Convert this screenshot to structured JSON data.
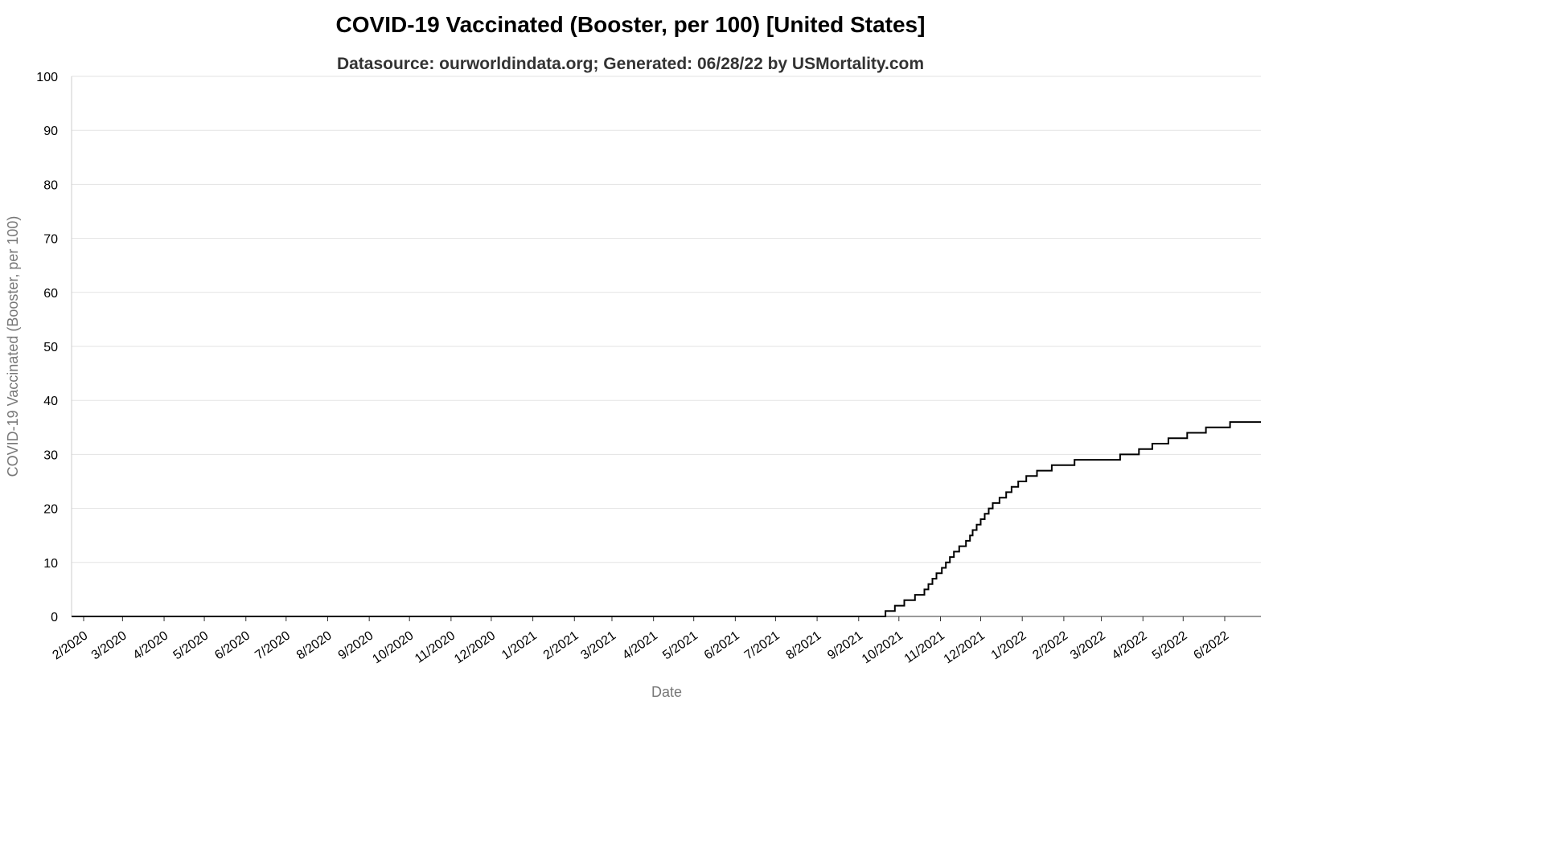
{
  "chart_data": {
    "type": "line",
    "title": "COVID-19 Vaccinated (Booster, per 100) [United States]",
    "subtitle": "Datasource: ourworldindata.org; Generated: 06/28/22 by USMortality.com",
    "xlabel": "Date",
    "ylabel": "COVID-19 Vaccinated (Booster, per 100)",
    "ylim": [
      0,
      100
    ],
    "yticks": [
      0,
      10,
      20,
      30,
      40,
      50,
      60,
      70,
      80,
      90,
      100
    ],
    "xlim": [
      "2020-01-23",
      "2022-06-28"
    ],
    "xticks": [
      {
        "date": "2020-02-01",
        "label": "2/2020"
      },
      {
        "date": "2020-03-01",
        "label": "3/2020"
      },
      {
        "date": "2020-04-01",
        "label": "4/2020"
      },
      {
        "date": "2020-05-01",
        "label": "5/2020"
      },
      {
        "date": "2020-06-01",
        "label": "6/2020"
      },
      {
        "date": "2020-07-01",
        "label": "7/2020"
      },
      {
        "date": "2020-08-01",
        "label": "8/2020"
      },
      {
        "date": "2020-09-01",
        "label": "9/2020"
      },
      {
        "date": "2020-10-01",
        "label": "10/2020"
      },
      {
        "date": "2020-11-01",
        "label": "11/2020"
      },
      {
        "date": "2020-12-01",
        "label": "12/2020"
      },
      {
        "date": "2021-01-01",
        "label": "1/2021"
      },
      {
        "date": "2021-02-01",
        "label": "2/2021"
      },
      {
        "date": "2021-03-01",
        "label": "3/2021"
      },
      {
        "date": "2021-04-01",
        "label": "4/2021"
      },
      {
        "date": "2021-05-01",
        "label": "5/2021"
      },
      {
        "date": "2021-06-01",
        "label": "6/2021"
      },
      {
        "date": "2021-07-01",
        "label": "7/2021"
      },
      {
        "date": "2021-08-01",
        "label": "8/2021"
      },
      {
        "date": "2021-09-01",
        "label": "9/2021"
      },
      {
        "date": "2021-10-01",
        "label": "10/2021"
      },
      {
        "date": "2021-11-01",
        "label": "11/2021"
      },
      {
        "date": "2021-12-01",
        "label": "12/2021"
      },
      {
        "date": "2022-01-01",
        "label": "1/2022"
      },
      {
        "date": "2022-02-01",
        "label": "2/2022"
      },
      {
        "date": "2022-03-01",
        "label": "3/2022"
      },
      {
        "date": "2022-04-01",
        "label": "4/2022"
      },
      {
        "date": "2022-05-01",
        "label": "5/2022"
      },
      {
        "date": "2022-06-01",
        "label": "6/2022"
      }
    ],
    "grid": true,
    "series": [
      {
        "color": "#000000",
        "step": true,
        "points": [
          {
            "x": "2020-01-23",
            "y": 0
          },
          {
            "x": "2021-09-21",
            "y": 0
          },
          {
            "x": "2021-09-21",
            "y": 1
          },
          {
            "x": "2021-09-28",
            "y": 2
          },
          {
            "x": "2021-10-05",
            "y": 3
          },
          {
            "x": "2021-10-13",
            "y": 4
          },
          {
            "x": "2021-10-20",
            "y": 5
          },
          {
            "x": "2021-10-23",
            "y": 6
          },
          {
            "x": "2021-10-26",
            "y": 7
          },
          {
            "x": "2021-10-29",
            "y": 8
          },
          {
            "x": "2021-11-02",
            "y": 9
          },
          {
            "x": "2021-11-05",
            "y": 10
          },
          {
            "x": "2021-11-08",
            "y": 11
          },
          {
            "x": "2021-11-11",
            "y": 12
          },
          {
            "x": "2021-11-15",
            "y": 13
          },
          {
            "x": "2021-11-20",
            "y": 14
          },
          {
            "x": "2021-11-23",
            "y": 15
          },
          {
            "x": "2021-11-25",
            "y": 16
          },
          {
            "x": "2021-11-28",
            "y": 17
          },
          {
            "x": "2021-12-01",
            "y": 18
          },
          {
            "x": "2021-12-04",
            "y": 19
          },
          {
            "x": "2021-12-07",
            "y": 20
          },
          {
            "x": "2021-12-10",
            "y": 21
          },
          {
            "x": "2021-12-15",
            "y": 22
          },
          {
            "x": "2021-12-20",
            "y": 23
          },
          {
            "x": "2021-12-24",
            "y": 24
          },
          {
            "x": "2021-12-29",
            "y": 25
          },
          {
            "x": "2022-01-04",
            "y": 26
          },
          {
            "x": "2022-01-12",
            "y": 27
          },
          {
            "x": "2022-01-23",
            "y": 28
          },
          {
            "x": "2022-02-09",
            "y": 29
          },
          {
            "x": "2022-03-15",
            "y": 30
          },
          {
            "x": "2022-03-29",
            "y": 31
          },
          {
            "x": "2022-04-08",
            "y": 32
          },
          {
            "x": "2022-04-20",
            "y": 33
          },
          {
            "x": "2022-05-04",
            "y": 34
          },
          {
            "x": "2022-05-18",
            "y": 35
          },
          {
            "x": "2022-06-05",
            "y": 36
          },
          {
            "x": "2022-06-28",
            "y": 36
          }
        ]
      }
    ]
  }
}
